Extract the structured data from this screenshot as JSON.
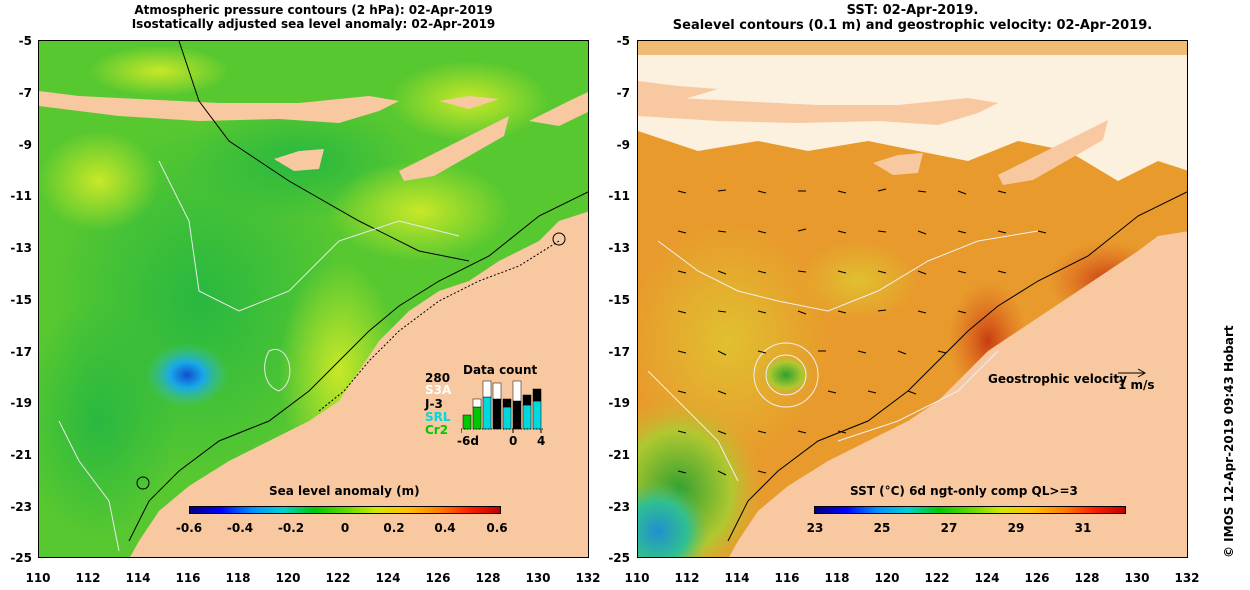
{
  "left_panel": {
    "title_line1": "Atmospheric pressure contours (2 hPa): 02-Apr-2019",
    "title_line2": "Isostatically adjusted sea level anomaly: 02-Apr-2019",
    "colorbar": {
      "title": "Sea level anomaly (m)",
      "ticks": [
        "-0.6",
        "-0.4",
        "-0.2",
        "0",
        "0.2",
        "0.4",
        "0.6"
      ]
    },
    "inset": {
      "title": "Data count",
      "max_label": "280",
      "series": [
        {
          "label": "S3A",
          "color": "#ffffff"
        },
        {
          "label": "J-3",
          "color": "#000000"
        },
        {
          "label": "SRL",
          "color": "#00d8e0"
        },
        {
          "label": "Cr2",
          "color": "#00c800"
        }
      ],
      "x_ticks": [
        "-6d",
        "0",
        "4"
      ]
    }
  },
  "right_panel": {
    "title_line1": "SST: 02-Apr-2019.",
    "title_line2": "Sealevel contours (0.1 m) and geostrophic velocity: 02-Apr-2019.",
    "velocity_label": "Geostrophic velocity",
    "velocity_scale": "1 m/s",
    "colorbar": {
      "title": "SST (°C) 6d ngt-only comp QL>=3",
      "ticks": [
        "23",
        "25",
        "27",
        "29",
        "31"
      ]
    }
  },
  "axes": {
    "y_ticks": [
      "-5",
      "-7",
      "-9",
      "-11",
      "-13",
      "-15",
      "-17",
      "-19",
      "-21",
      "-23",
      "-25"
    ],
    "x_ticks": [
      "110",
      "112",
      "114",
      "116",
      "118",
      "120",
      "122",
      "124",
      "126",
      "128",
      "130",
      "132"
    ]
  },
  "credit": "© IMOS 12-Apr-2019 09:43 Hobart",
  "colors": {
    "land": "#f8c8a0",
    "ocean_sla": "#64c832",
    "ocean_sst": "#e89a2c"
  }
}
